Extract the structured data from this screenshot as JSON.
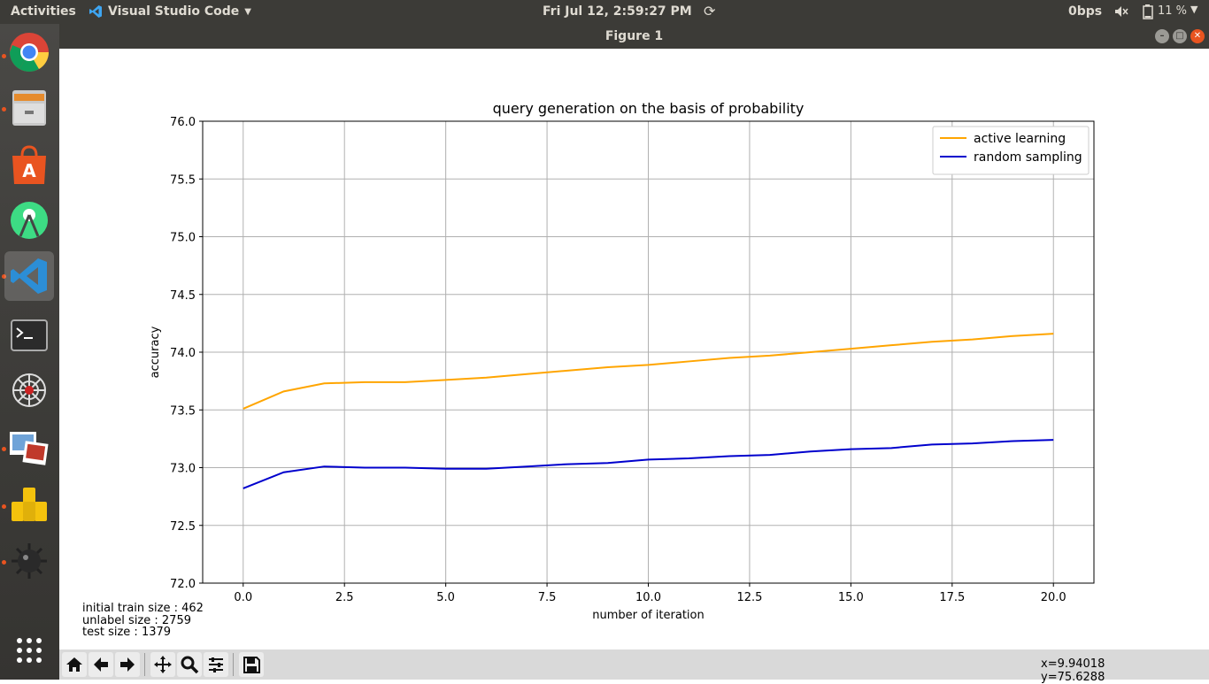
{
  "topbar": {
    "activities": "Activities",
    "app_name": "Visual Studio Code",
    "clock": "Fri Jul 12,  2:59:27 PM",
    "net_speed": "0bps",
    "battery_percent": "11 %"
  },
  "window": {
    "title": "Figure 1"
  },
  "launcher": {
    "items": [
      {
        "name": "chrome-icon",
        "running": true
      },
      {
        "name": "files-icon",
        "running": true
      },
      {
        "name": "software-center-icon",
        "running": false
      },
      {
        "name": "android-studio-icon",
        "running": false
      },
      {
        "name": "vscode-icon",
        "running": true,
        "active": true
      },
      {
        "name": "terminal-icon",
        "running": false
      },
      {
        "name": "spider-icon",
        "running": false
      },
      {
        "name": "image-viewer-icon",
        "running": true
      },
      {
        "name": "mahjongg-icon",
        "running": true
      },
      {
        "name": "mines-icon",
        "running": true
      },
      {
        "name": "app-grid-icon",
        "running": false
      }
    ]
  },
  "info_text": {
    "train": "initial train size : 462",
    "unlabel": "unlabel size : 2759",
    "test": "test size : 1379"
  },
  "status": {
    "x": "x=9.94018",
    "y": "y=75.6288"
  },
  "toolbar": {
    "buttons": [
      "home-icon",
      "back-icon",
      "forward-icon",
      "pan-icon",
      "zoom-icon",
      "configure-subplots-icon",
      "save-icon"
    ]
  },
  "chart_data": {
    "type": "line",
    "title": "query generation on the basis of probability",
    "xlabel": "number of iteration",
    "ylabel": "accuracy",
    "xlim": [
      -1.0,
      21.0
    ],
    "ylim": [
      72.0,
      76.0
    ],
    "xticks": [
      "0.0",
      "2.5",
      "5.0",
      "7.5",
      "10.0",
      "12.5",
      "15.0",
      "17.5",
      "20.0"
    ],
    "yticks": [
      "72.0",
      "72.5",
      "73.0",
      "73.5",
      "74.0",
      "74.5",
      "75.0",
      "75.5",
      "76.0"
    ],
    "grid": true,
    "legend_position": "top-right",
    "x": [
      0,
      1,
      2,
      3,
      4,
      5,
      6,
      7,
      8,
      9,
      10,
      11,
      12,
      13,
      14,
      15,
      16,
      17,
      18,
      19,
      20
    ],
    "series": [
      {
        "name": "active learning",
        "color": "#ffa500",
        "values": [
          73.51,
          73.66,
          73.73,
          73.74,
          73.74,
          73.76,
          73.78,
          73.81,
          73.84,
          73.87,
          73.89,
          73.92,
          73.95,
          73.97,
          74.0,
          74.03,
          74.06,
          74.09,
          74.11,
          74.14,
          74.16
        ]
      },
      {
        "name": "random sampling",
        "color": "#0000cd",
        "values": [
          72.82,
          72.96,
          73.01,
          73.0,
          73.0,
          72.99,
          72.99,
          73.01,
          73.03,
          73.04,
          73.07,
          73.08,
          73.1,
          73.11,
          73.14,
          73.16,
          73.17,
          73.2,
          73.21,
          73.23,
          73.24
        ]
      }
    ]
  }
}
